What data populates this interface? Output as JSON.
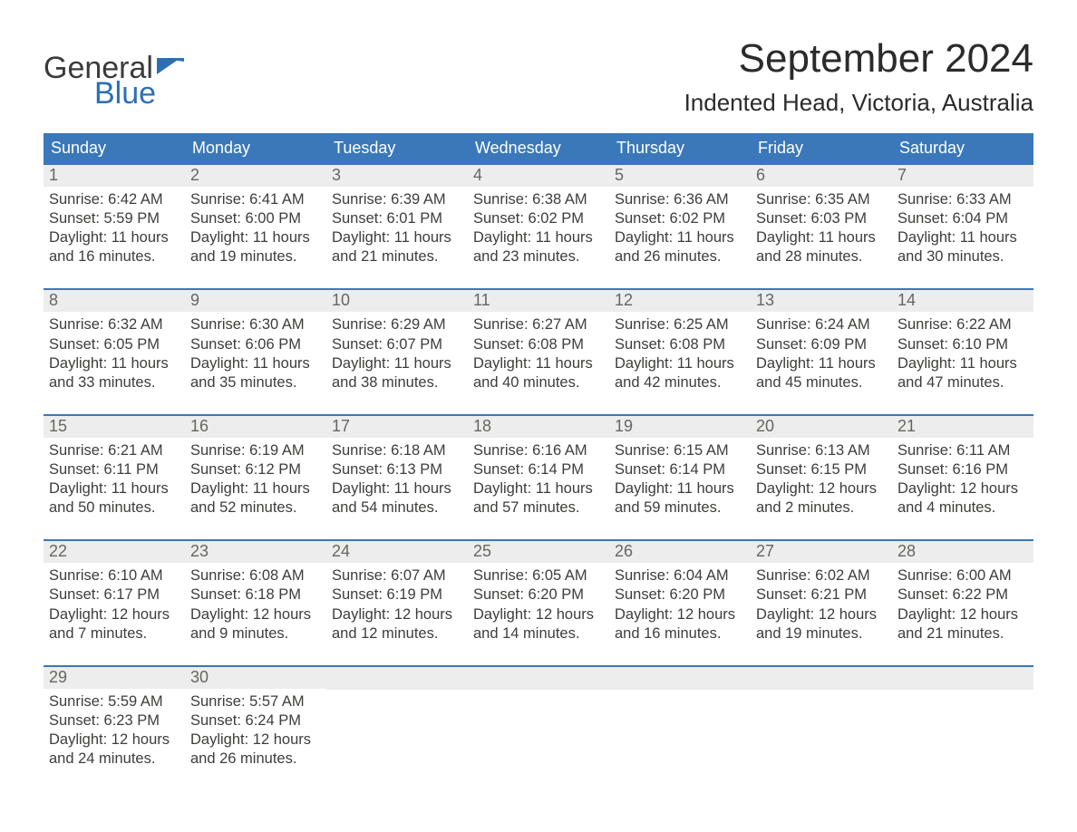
{
  "logo": {
    "word1": "General",
    "word2": "Blue"
  },
  "title": "September 2024",
  "location": "Indented Head, Victoria, Australia",
  "colors": {
    "header_bg": "#3a78b9",
    "header_text": "#ffffff",
    "daynum_bg": "#ededed",
    "daynum_border": "#3a78b9",
    "daynum_text": "#666662",
    "body_text": "#3d3d3b",
    "logo_gray": "#3a3a3a",
    "logo_blue": "#2d6fb7"
  },
  "daysOfWeek": [
    "Sunday",
    "Monday",
    "Tuesday",
    "Wednesday",
    "Thursday",
    "Friday",
    "Saturday"
  ],
  "weeks": [
    [
      {
        "n": "1",
        "sunrise": "Sunrise: 6:42 AM",
        "sunset": "Sunset: 5:59 PM",
        "dl1": "Daylight: 11 hours",
        "dl2": "and 16 minutes."
      },
      {
        "n": "2",
        "sunrise": "Sunrise: 6:41 AM",
        "sunset": "Sunset: 6:00 PM",
        "dl1": "Daylight: 11 hours",
        "dl2": "and 19 minutes."
      },
      {
        "n": "3",
        "sunrise": "Sunrise: 6:39 AM",
        "sunset": "Sunset: 6:01 PM",
        "dl1": "Daylight: 11 hours",
        "dl2": "and 21 minutes."
      },
      {
        "n": "4",
        "sunrise": "Sunrise: 6:38 AM",
        "sunset": "Sunset: 6:02 PM",
        "dl1": "Daylight: 11 hours",
        "dl2": "and 23 minutes."
      },
      {
        "n": "5",
        "sunrise": "Sunrise: 6:36 AM",
        "sunset": "Sunset: 6:02 PM",
        "dl1": "Daylight: 11 hours",
        "dl2": "and 26 minutes."
      },
      {
        "n": "6",
        "sunrise": "Sunrise: 6:35 AM",
        "sunset": "Sunset: 6:03 PM",
        "dl1": "Daylight: 11 hours",
        "dl2": "and 28 minutes."
      },
      {
        "n": "7",
        "sunrise": "Sunrise: 6:33 AM",
        "sunset": "Sunset: 6:04 PM",
        "dl1": "Daylight: 11 hours",
        "dl2": "and 30 minutes."
      }
    ],
    [
      {
        "n": "8",
        "sunrise": "Sunrise: 6:32 AM",
        "sunset": "Sunset: 6:05 PM",
        "dl1": "Daylight: 11 hours",
        "dl2": "and 33 minutes."
      },
      {
        "n": "9",
        "sunrise": "Sunrise: 6:30 AM",
        "sunset": "Sunset: 6:06 PM",
        "dl1": "Daylight: 11 hours",
        "dl2": "and 35 minutes."
      },
      {
        "n": "10",
        "sunrise": "Sunrise: 6:29 AM",
        "sunset": "Sunset: 6:07 PM",
        "dl1": "Daylight: 11 hours",
        "dl2": "and 38 minutes."
      },
      {
        "n": "11",
        "sunrise": "Sunrise: 6:27 AM",
        "sunset": "Sunset: 6:08 PM",
        "dl1": "Daylight: 11 hours",
        "dl2": "and 40 minutes."
      },
      {
        "n": "12",
        "sunrise": "Sunrise: 6:25 AM",
        "sunset": "Sunset: 6:08 PM",
        "dl1": "Daylight: 11 hours",
        "dl2": "and 42 minutes."
      },
      {
        "n": "13",
        "sunrise": "Sunrise: 6:24 AM",
        "sunset": "Sunset: 6:09 PM",
        "dl1": "Daylight: 11 hours",
        "dl2": "and 45 minutes."
      },
      {
        "n": "14",
        "sunrise": "Sunrise: 6:22 AM",
        "sunset": "Sunset: 6:10 PM",
        "dl1": "Daylight: 11 hours",
        "dl2": "and 47 minutes."
      }
    ],
    [
      {
        "n": "15",
        "sunrise": "Sunrise: 6:21 AM",
        "sunset": "Sunset: 6:11 PM",
        "dl1": "Daylight: 11 hours",
        "dl2": "and 50 minutes."
      },
      {
        "n": "16",
        "sunrise": "Sunrise: 6:19 AM",
        "sunset": "Sunset: 6:12 PM",
        "dl1": "Daylight: 11 hours",
        "dl2": "and 52 minutes."
      },
      {
        "n": "17",
        "sunrise": "Sunrise: 6:18 AM",
        "sunset": "Sunset: 6:13 PM",
        "dl1": "Daylight: 11 hours",
        "dl2": "and 54 minutes."
      },
      {
        "n": "18",
        "sunrise": "Sunrise: 6:16 AM",
        "sunset": "Sunset: 6:14 PM",
        "dl1": "Daylight: 11 hours",
        "dl2": "and 57 minutes."
      },
      {
        "n": "19",
        "sunrise": "Sunrise: 6:15 AM",
        "sunset": "Sunset: 6:14 PM",
        "dl1": "Daylight: 11 hours",
        "dl2": "and 59 minutes."
      },
      {
        "n": "20",
        "sunrise": "Sunrise: 6:13 AM",
        "sunset": "Sunset: 6:15 PM",
        "dl1": "Daylight: 12 hours",
        "dl2": "and 2 minutes."
      },
      {
        "n": "21",
        "sunrise": "Sunrise: 6:11 AM",
        "sunset": "Sunset: 6:16 PM",
        "dl1": "Daylight: 12 hours",
        "dl2": "and 4 minutes."
      }
    ],
    [
      {
        "n": "22",
        "sunrise": "Sunrise: 6:10 AM",
        "sunset": "Sunset: 6:17 PM",
        "dl1": "Daylight: 12 hours",
        "dl2": "and 7 minutes."
      },
      {
        "n": "23",
        "sunrise": "Sunrise: 6:08 AM",
        "sunset": "Sunset: 6:18 PM",
        "dl1": "Daylight: 12 hours",
        "dl2": "and 9 minutes."
      },
      {
        "n": "24",
        "sunrise": "Sunrise: 6:07 AM",
        "sunset": "Sunset: 6:19 PM",
        "dl1": "Daylight: 12 hours",
        "dl2": "and 12 minutes."
      },
      {
        "n": "25",
        "sunrise": "Sunrise: 6:05 AM",
        "sunset": "Sunset: 6:20 PM",
        "dl1": "Daylight: 12 hours",
        "dl2": "and 14 minutes."
      },
      {
        "n": "26",
        "sunrise": "Sunrise: 6:04 AM",
        "sunset": "Sunset: 6:20 PM",
        "dl1": "Daylight: 12 hours",
        "dl2": "and 16 minutes."
      },
      {
        "n": "27",
        "sunrise": "Sunrise: 6:02 AM",
        "sunset": "Sunset: 6:21 PM",
        "dl1": "Daylight: 12 hours",
        "dl2": "and 19 minutes."
      },
      {
        "n": "28",
        "sunrise": "Sunrise: 6:00 AM",
        "sunset": "Sunset: 6:22 PM",
        "dl1": "Daylight: 12 hours",
        "dl2": "and 21 minutes."
      }
    ],
    [
      {
        "n": "29",
        "sunrise": "Sunrise: 5:59 AM",
        "sunset": "Sunset: 6:23 PM",
        "dl1": "Daylight: 12 hours",
        "dl2": "and 24 minutes."
      },
      {
        "n": "30",
        "sunrise": "Sunrise: 5:57 AM",
        "sunset": "Sunset: 6:24 PM",
        "dl1": "Daylight: 12 hours",
        "dl2": "and 26 minutes."
      },
      null,
      null,
      null,
      null,
      null
    ]
  ]
}
